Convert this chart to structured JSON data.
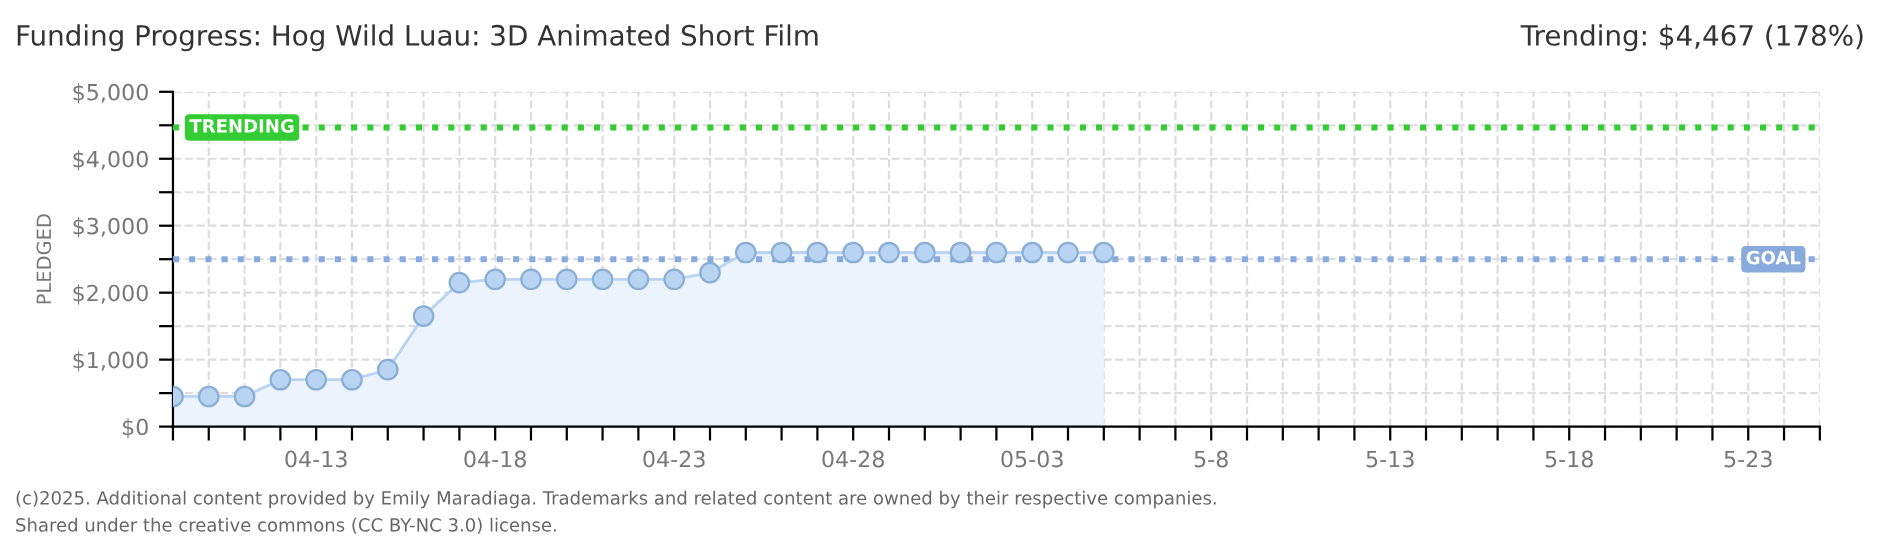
{
  "chart_data": {
    "type": "area",
    "title": "Funding Progress: Hog Wild Luau: 3D Animated Short Film",
    "ylabel": "PLEDGED",
    "annotations": [
      "Trending: $4,467 (178%)",
      "(c)2025. Additional content provided by Emily Maradiaga. Trademarks and related content are owned by their respective companies.",
      "Shared under the creative commons (CC BY-NC 3.0) license."
    ],
    "x": [
      "2025-04-09",
      "2025-04-10",
      "2025-04-11",
      "2025-04-12",
      "2025-04-13",
      "2025-04-14",
      "2025-04-15",
      "2025-04-16",
      "2025-04-17",
      "2025-04-18",
      "2025-04-19",
      "2025-04-20",
      "2025-04-21",
      "2025-04-22",
      "2025-04-23",
      "2025-04-24",
      "2025-04-25",
      "2025-04-26",
      "2025-04-27",
      "2025-04-28",
      "2025-04-29",
      "2025-04-30",
      "2025-05-01",
      "2025-05-02",
      "2025-05-03",
      "2025-05-04",
      "2025-05-05"
    ],
    "series": [
      {
        "color": "#ebf3fc",
        "values": [
          450,
          450,
          450,
          700,
          700,
          700,
          850,
          1650,
          2150,
          2200,
          2200,
          2200,
          2200,
          2200,
          2200,
          2300,
          2600,
          2600,
          2600,
          2600,
          2600,
          2600,
          2600,
          2600,
          2600,
          2600,
          2600
        ]
      }
    ],
    "marker": "circle",
    "xlim": [
      "2025-04-09",
      "2025-05-25"
    ],
    "xticks": [
      {
        "value": "2025-04-09",
        "label": null
      },
      {
        "value": "2025-04-10",
        "label": null
      },
      {
        "value": "2025-04-11",
        "label": null
      },
      {
        "value": "2025-04-12",
        "label": null
      },
      {
        "value": "2025-04-13",
        "label": "04-13"
      },
      {
        "value": "2025-04-14",
        "label": null
      },
      {
        "value": "2025-04-15",
        "label": null
      },
      {
        "value": "2025-04-16",
        "label": null
      },
      {
        "value": "2025-04-17",
        "label": null
      },
      {
        "value": "2025-04-18",
        "label": "04-18"
      },
      {
        "value": "2025-04-19",
        "label": null
      },
      {
        "value": "2025-04-20",
        "label": null
      },
      {
        "value": "2025-04-21",
        "label": null
      },
      {
        "value": "2025-04-22",
        "label": null
      },
      {
        "value": "2025-04-23",
        "label": "04-23"
      },
      {
        "value": "2025-04-24",
        "label": null
      },
      {
        "value": "2025-04-25",
        "label": null
      },
      {
        "value": "2025-04-26",
        "label": null
      },
      {
        "value": "2025-04-27",
        "label": null
      },
      {
        "value": "2025-04-28",
        "label": "04-28"
      },
      {
        "value": "2025-04-29",
        "label": null
      },
      {
        "value": "2025-04-30",
        "label": null
      },
      {
        "value": "2025-05-01",
        "label": null
      },
      {
        "value": "2025-05-02",
        "label": null
      },
      {
        "value": "2025-05-03",
        "label": "05-03"
      },
      {
        "value": "2025-05-04",
        "label": null
      },
      {
        "value": "2025-05-05",
        "label": null
      },
      {
        "value": "2025-05-06",
        "label": null
      },
      {
        "value": "2025-05-07",
        "label": null
      },
      {
        "value": "2025-05-08",
        "label": "5-8"
      },
      {
        "value": "2025-05-09",
        "label": null
      },
      {
        "value": "2025-05-10",
        "label": null
      },
      {
        "value": "2025-05-11",
        "label": null
      },
      {
        "value": "2025-05-12",
        "label": null
      },
      {
        "value": "2025-05-13",
        "label": "5-13"
      },
      {
        "value": "2025-05-14",
        "label": null
      },
      {
        "value": "2025-05-15",
        "label": null
      },
      {
        "value": "2025-05-16",
        "label": null
      },
      {
        "value": "2025-05-17",
        "label": null
      },
      {
        "value": "2025-05-18",
        "label": "5-18"
      },
      {
        "value": "2025-05-19",
        "label": null
      },
      {
        "value": "2025-05-20",
        "label": null
      },
      {
        "value": "2025-05-21",
        "label": null
      },
      {
        "value": "2025-05-22",
        "label": null
      },
      {
        "value": "2025-05-23",
        "label": "5-23"
      },
      {
        "value": "2025-05-24",
        "label": null
      },
      {
        "value": "2025-05-25",
        "label": null
      }
    ],
    "ylim": [
      0,
      5000
    ],
    "yticks": [
      {
        "value": 0,
        "label": "$0"
      },
      {
        "value": 500,
        "label": null
      },
      {
        "value": 1000,
        "label": "$1,000"
      },
      {
        "value": 1500,
        "label": null
      },
      {
        "value": 2000,
        "label": "$2,000"
      },
      {
        "value": 2500,
        "label": null
      },
      {
        "value": 3000,
        "label": "$3,000"
      },
      {
        "value": 3500,
        "label": null
      },
      {
        "value": 4000,
        "label": "$4,000"
      },
      {
        "value": 4500,
        "label": null
      },
      {
        "value": 5000,
        "label": "$5,000"
      }
    ],
    "grid": true,
    "ref_lines": [
      {
        "axis": "y",
        "value": 4467,
        "label": "TRENDING",
        "color": "#33cc33",
        "line_style": "dotted"
      },
      {
        "axis": "y",
        "value": 2500,
        "label": "GOAL",
        "color": "#88aadd",
        "line_style": "dotted"
      }
    ]
  }
}
